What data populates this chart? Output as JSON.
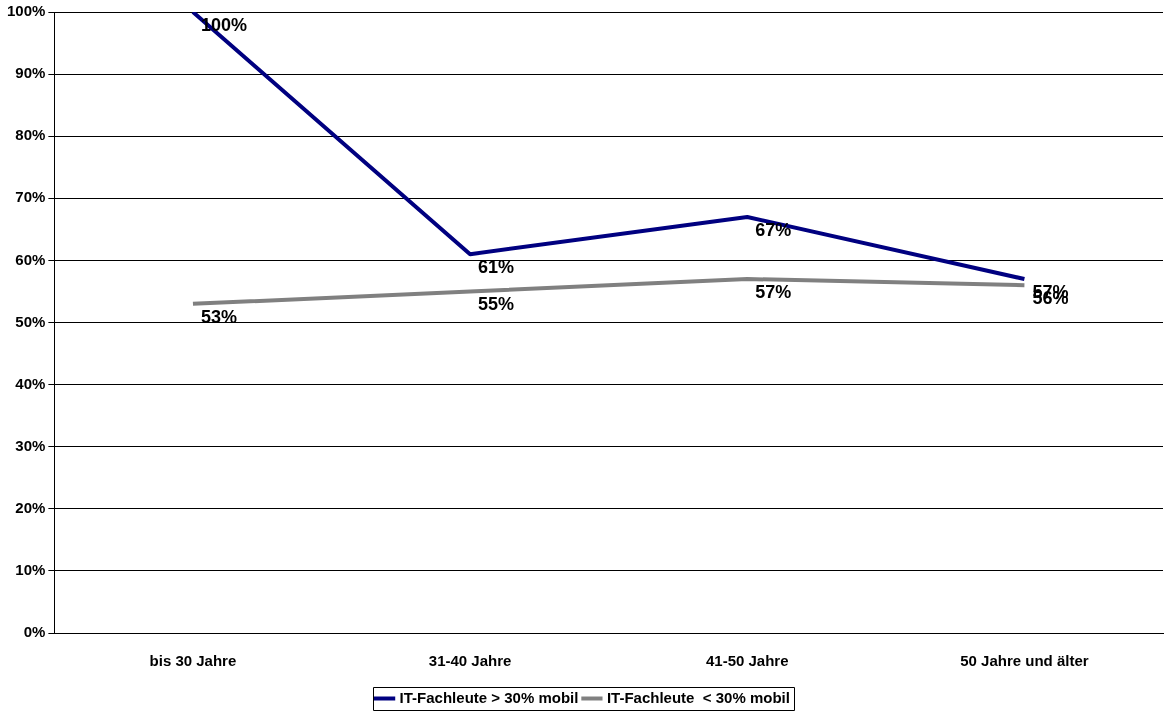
{
  "chart_data": {
    "type": "line",
    "categories": [
      "bis 30 Jahre",
      "31-40 Jahre",
      "41-50 Jahre",
      "50 Jahre und älter"
    ],
    "series": [
      {
        "name": "IT-Fachleute > 30% mobil",
        "color": "#000080",
        "values": [
          100,
          61,
          67,
          57
        ],
        "value_labels": [
          "100%",
          "61%",
          "67%",
          "57%"
        ]
      },
      {
        "name": "IT-Fachleute  < 30% mobil",
        "color": "#808080",
        "values": [
          53,
          55,
          57,
          56
        ],
        "value_labels": [
          "53%",
          "55%",
          "57%",
          "56%"
        ]
      }
    ],
    "ylim": [
      0,
      100
    ],
    "yticks": [
      {
        "value": 0,
        "label": "0%"
      },
      {
        "value": 10,
        "label": "10%"
      },
      {
        "value": 20,
        "label": "20%"
      },
      {
        "value": 30,
        "label": "30%"
      },
      {
        "value": 40,
        "label": "40%"
      },
      {
        "value": 50,
        "label": "50%"
      },
      {
        "value": 60,
        "label": "60%"
      },
      {
        "value": 70,
        "label": "70%"
      },
      {
        "value": 80,
        "label": "80%"
      },
      {
        "value": 90,
        "label": "90%"
      },
      {
        "value": 100,
        "label": "100%"
      }
    ],
    "grid": "y",
    "legend": "bottom",
    "marker": "none",
    "line_style": "solid"
  }
}
